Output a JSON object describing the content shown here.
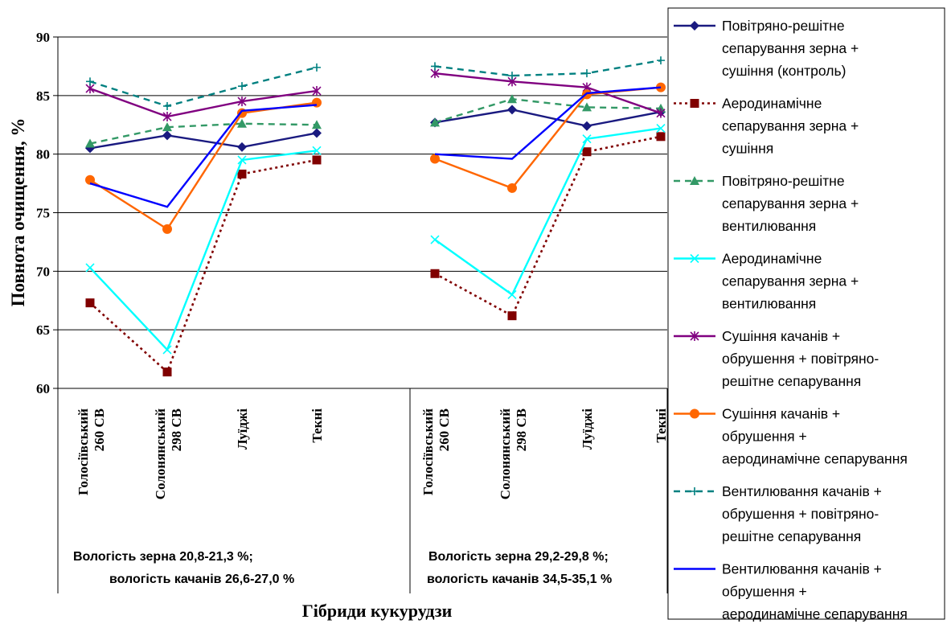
{
  "chart_data": {
    "type": "line",
    "ylabel": "Повнота очищення, %",
    "xlabel": "Гібриди кукурудзи",
    "ylim": [
      60,
      90
    ],
    "y_ticks": [
      "60",
      "65",
      "70",
      "75",
      "80",
      "85",
      "90"
    ],
    "grid": true,
    "legend_position": "right",
    "groups": [
      {
        "label_line1": "Вологість зерна 20,8-21,3 %;",
        "label_line2": "вологість качанів 26,6-27,0 %",
        "categories": [
          {
            "line1": "Голосіївський",
            "line2": "260 СВ"
          },
          {
            "line1": "Солонянський",
            "line2": "298 СВ"
          },
          {
            "line1": "Луїджі",
            "line2": ""
          },
          {
            "line1": "Текні",
            "line2": ""
          }
        ]
      },
      {
        "label_line1": "Вологість зерна 29,2-29,8 %;",
        "label_line2": "вологість качанів 34,5-35,1 %",
        "categories": [
          {
            "line1": "Голосіївський",
            "line2": "260 СВ"
          },
          {
            "line1": "Солонянський",
            "line2": "298 СВ"
          },
          {
            "line1": "Луїджі",
            "line2": ""
          },
          {
            "line1": "Текні",
            "line2": ""
          }
        ]
      }
    ],
    "series": [
      {
        "name_lines": [
          "Повітряно-решітне",
          "сепарування зерна +",
          "сушіння (контроль)"
        ],
        "color": "#1a1a80",
        "dash": "solid",
        "marker": "diamond",
        "values": [
          [
            80.5,
            81.6,
            80.6,
            81.8
          ],
          [
            82.7,
            83.8,
            82.4,
            83.6
          ]
        ]
      },
      {
        "name_lines": [
          "Аеродинамічне",
          "сепарування зерна +",
          "сушіння"
        ],
        "color": "#800000",
        "dash": "dot",
        "marker": "square",
        "values": [
          [
            67.3,
            61.4,
            78.3,
            79.5
          ],
          [
            69.8,
            66.2,
            80.2,
            81.5
          ]
        ]
      },
      {
        "name_lines": [
          "Повітряно-решітне",
          "сепарування зерна +",
          "вентилювання"
        ],
        "color": "#339966",
        "dash": "dash",
        "marker": "triangle",
        "values": [
          [
            80.9,
            82.3,
            82.6,
            82.5
          ],
          [
            82.7,
            84.7,
            84.0,
            83.9
          ]
        ]
      },
      {
        "name_lines": [
          "Аеродинамічне",
          "сепарування зерна +",
          "вентилювання"
        ],
        "color": "#00ffff",
        "dash": "solid",
        "marker": "x",
        "values": [
          [
            70.3,
            63.3,
            79.5,
            80.3
          ],
          [
            72.7,
            68.0,
            81.3,
            82.2
          ]
        ]
      },
      {
        "name_lines": [
          "Сушіння качанів +",
          "обрушення + повітряно-",
          "решітне сепарування"
        ],
        "color": "#800080",
        "dash": "solid",
        "marker": "star",
        "values": [
          [
            85.6,
            83.2,
            84.5,
            85.4
          ],
          [
            86.9,
            86.2,
            85.7,
            83.5
          ]
        ]
      },
      {
        "name_lines": [
          "Сушіння качанів +",
          "обрушення +",
          "аеродинамічне сепарування"
        ],
        "color": "#ff6600",
        "dash": "solid",
        "marker": "circle",
        "values": [
          [
            77.8,
            73.6,
            83.5,
            84.4
          ],
          [
            79.6,
            77.1,
            85.1,
            85.7
          ]
        ]
      },
      {
        "name_lines": [
          "Вентилювання качанів +",
          "обрушення + повітряно-",
          "решітне сепарування"
        ],
        "color": "#008080",
        "dash": "dash",
        "marker": "plus",
        "values": [
          [
            86.2,
            84.1,
            85.8,
            87.4
          ],
          [
            87.5,
            86.7,
            86.9,
            88.0
          ]
        ]
      },
      {
        "name_lines": [
          "Вентилювання качанів +",
          "обрушення +",
          "аеродинамічне сепарування"
        ],
        "color": "#0000ff",
        "dash": "solid",
        "marker": "none",
        "values": [
          [
            77.5,
            75.5,
            83.7,
            84.2
          ],
          [
            80.0,
            79.6,
            85.2,
            85.7
          ]
        ]
      }
    ]
  }
}
